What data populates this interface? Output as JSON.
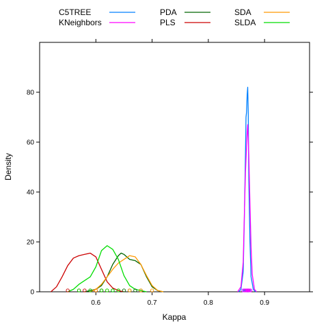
{
  "chart_data": {
    "type": "line",
    "xlabel": "Kappa",
    "ylabel": "Density",
    "xlim": [
      0.5,
      0.98
    ],
    "ylim": [
      0,
      100
    ],
    "x_ticks": [
      0.6,
      0.7,
      0.8,
      0.9
    ],
    "x_tick_labels": [
      "0.6",
      "0.7",
      "0.8",
      "0.9"
    ],
    "y_ticks": [
      0,
      20,
      40,
      60,
      80
    ],
    "y_tick_labels": [
      "0",
      "20",
      "40",
      "60",
      "80"
    ],
    "grid": false,
    "legend_position": "top",
    "series": [
      {
        "name": "C5TREE",
        "color": "#0080ff",
        "x": [
          0.854,
          0.858,
          0.862,
          0.864,
          0.866,
          0.867,
          0.868,
          0.869,
          0.87,
          0.871,
          0.872,
          0.874,
          0.876,
          0.88,
          0.884
        ],
        "y": [
          0,
          1,
          8,
          28,
          55,
          70,
          72,
          79,
          82,
          72,
          45,
          20,
          6,
          1,
          0
        ],
        "rug": [
          0.864,
          0.866,
          0.868,
          0.869,
          0.87,
          0.871,
          0.872
        ]
      },
      {
        "name": "KNeighbors",
        "color": "#ff00ff",
        "x": [
          0.852,
          0.858,
          0.862,
          0.864,
          0.866,
          0.868,
          0.869,
          0.87,
          0.872,
          0.874,
          0.876,
          0.878,
          0.882,
          0.886
        ],
        "y": [
          0,
          2,
          12,
          30,
          48,
          58,
          64,
          67,
          55,
          35,
          18,
          7,
          1,
          0
        ],
        "rug": [
          0.862,
          0.865,
          0.867,
          0.869,
          0.87,
          0.871,
          0.873,
          0.875
        ]
      },
      {
        "name": "PDA",
        "color": "#006400",
        "x": [
          0.58,
          0.59,
          0.6,
          0.61,
          0.62,
          0.63,
          0.64,
          0.645,
          0.65,
          0.66,
          0.67,
          0.68,
          0.69,
          0.7,
          0.71,
          0.72
        ],
        "y": [
          0,
          0.5,
          1,
          2.5,
          6,
          11,
          14.5,
          15.5,
          15,
          13,
          12.5,
          11,
          6,
          2,
          0.5,
          0
        ],
        "rug": [
          0.61,
          0.63,
          0.64,
          0.65,
          0.66,
          0.67,
          0.68
        ]
      },
      {
        "name": "PLS",
        "color": "#cc0000",
        "x": [
          0.52,
          0.53,
          0.54,
          0.55,
          0.56,
          0.57,
          0.58,
          0.59,
          0.6,
          0.61,
          0.62,
          0.63,
          0.64,
          0.65
        ],
        "y": [
          0,
          2,
          6,
          10.5,
          13.5,
          14.5,
          15,
          15.5,
          14,
          9,
          4,
          1.5,
          0.5,
          0
        ],
        "rug": [
          0.55,
          0.57,
          0.58,
          0.59,
          0.6,
          0.61
        ]
      },
      {
        "name": "SDA",
        "color": "#ff9900",
        "x": [
          0.59,
          0.6,
          0.61,
          0.62,
          0.63,
          0.64,
          0.65,
          0.66,
          0.67,
          0.68,
          0.69,
          0.7,
          0.71,
          0.72
        ],
        "y": [
          0,
          1,
          3,
          6,
          9,
          11.5,
          13,
          14.5,
          14,
          11,
          6.5,
          2.5,
          0.5,
          0
        ],
        "rug": [
          0.6,
          0.62,
          0.64,
          0.66,
          0.68,
          0.7
        ]
      },
      {
        "name": "SLDA",
        "color": "#00dd00",
        "x": [
          0.55,
          0.56,
          0.57,
          0.58,
          0.59,
          0.6,
          0.61,
          0.62,
          0.63,
          0.64,
          0.65,
          0.66,
          0.67,
          0.68,
          0.69
        ],
        "y": [
          0,
          1,
          3,
          4.5,
          6,
          10,
          16.5,
          18.5,
          17,
          13,
          6.5,
          2.5,
          1,
          0.5,
          0
        ],
        "rug": [
          0.57,
          0.59,
          0.61,
          0.62,
          0.63,
          0.64
        ]
      }
    ]
  }
}
